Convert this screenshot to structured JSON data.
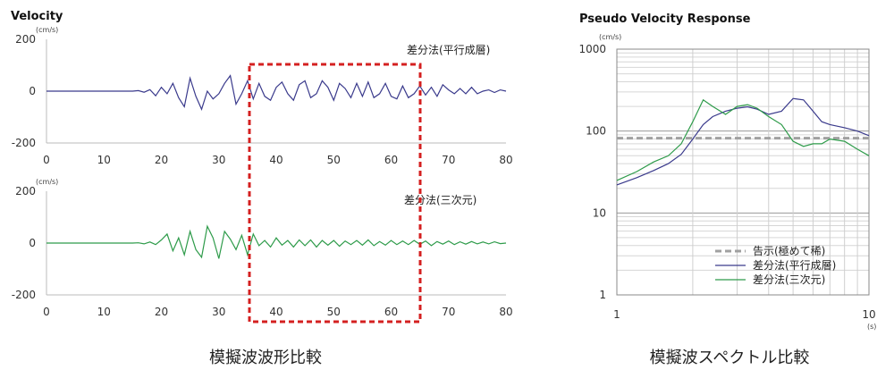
{
  "chart_data": [
    {
      "type": "line",
      "title": "Velocity",
      "unit": "(cm/s)",
      "xticks": [
        0,
        10,
        20,
        30,
        40,
        50,
        60,
        70,
        80
      ],
      "yticks": [
        200,
        0,
        -200
      ],
      "xlim": [
        0,
        80
      ],
      "ylim": [
        -200,
        200
      ],
      "series": [
        {
          "name": "差分法(平行成層)",
          "color": "#3a3a8c",
          "x": [
            0,
            15,
            16,
            17,
            18,
            19,
            20,
            21,
            22,
            23,
            24,
            25,
            26,
            27,
            28,
            29,
            30,
            31,
            32,
            33,
            34,
            35,
            36,
            37,
            38,
            39,
            40,
            41,
            42,
            43,
            44,
            45,
            46,
            47,
            48,
            49,
            50,
            51,
            52,
            53,
            54,
            55,
            56,
            57,
            58,
            59,
            60,
            61,
            62,
            63,
            64,
            65,
            66,
            67,
            68,
            69,
            70,
            71,
            72,
            73,
            74,
            75,
            76,
            77,
            78,
            79,
            80
          ],
          "y": [
            0,
            0,
            2,
            -4,
            6,
            -18,
            15,
            -10,
            30,
            -25,
            -60,
            50,
            -20,
            -70,
            0,
            -30,
            -10,
            30,
            60,
            -50,
            -10,
            40,
            -30,
            30,
            -20,
            -35,
            15,
            35,
            -10,
            -35,
            25,
            40,
            -25,
            -10,
            40,
            15,
            -35,
            30,
            10,
            -25,
            30,
            -20,
            35,
            -25,
            -10,
            30,
            -20,
            -30,
            20,
            -25,
            -10,
            20,
            -15,
            15,
            -20,
            25,
            5,
            -10,
            10,
            -10,
            15,
            -10,
            0,
            5,
            -5,
            5,
            0
          ]
        }
      ],
      "series_label": "差分法(平行成層)"
    },
    {
      "type": "line",
      "unit": "(cm/s)",
      "xticks": [
        0,
        10,
        20,
        30,
        40,
        50,
        60,
        70,
        80
      ],
      "yticks": [
        200,
        0,
        -200
      ],
      "xlim": [
        0,
        80
      ],
      "ylim": [
        -200,
        200
      ],
      "series": [
        {
          "name": "差分法(三次元)",
          "color": "#2e9b4a",
          "x": [
            0,
            15,
            16,
            17,
            18,
            19,
            20,
            21,
            22,
            23,
            24,
            25,
            26,
            27,
            28,
            29,
            30,
            31,
            32,
            33,
            34,
            35,
            36,
            37,
            38,
            39,
            40,
            41,
            42,
            43,
            44,
            45,
            46,
            47,
            48,
            49,
            50,
            51,
            52,
            53,
            54,
            55,
            56,
            57,
            58,
            59,
            60,
            61,
            62,
            63,
            64,
            65,
            66,
            67,
            68,
            69,
            70,
            71,
            72,
            73,
            74,
            75,
            76,
            77,
            78,
            79,
            80
          ],
          "y": [
            0,
            0,
            1,
            -3,
            4,
            -6,
            12,
            35,
            -30,
            20,
            -45,
            45,
            -25,
            -55,
            65,
            20,
            -60,
            45,
            15,
            -25,
            30,
            -45,
            35,
            -10,
            10,
            -15,
            20,
            -8,
            10,
            -15,
            12,
            -10,
            12,
            -15,
            10,
            -8,
            10,
            -12,
            8,
            -6,
            10,
            -8,
            12,
            -10,
            6,
            -8,
            10,
            -6,
            8,
            -6,
            10,
            -5,
            8,
            -10,
            6,
            -4,
            8,
            -6,
            5,
            -4,
            6,
            -3,
            4,
            -3,
            5,
            -2,
            0
          ]
        }
      ],
      "series_label": "差分法(三次元)"
    },
    {
      "type": "line",
      "title": "Pseudo Velocity Response",
      "unit": "(cm/s)",
      "xunit": "(s)",
      "xscale": "log",
      "yscale": "log",
      "xlim": [
        1,
        10
      ],
      "ylim": [
        1,
        1000
      ],
      "xticks": [
        1,
        10
      ],
      "yticks": [
        1000,
        100,
        10,
        1
      ],
      "grid": true,
      "legend_position": "bottom-right",
      "series": [
        {
          "name": "告示(極めて稀)",
          "color": "#a0a0a0",
          "dashed": true,
          "x": [
            1,
            10
          ],
          "y": [
            82,
            82
          ]
        },
        {
          "name": "差分法(平行成層)",
          "color": "#3a3a8c",
          "x": [
            1.0,
            1.2,
            1.4,
            1.6,
            1.8,
            2.0,
            2.2,
            2.4,
            2.7,
            3.0,
            3.3,
            3.6,
            4.0,
            4.5,
            5.0,
            5.5,
            6.0,
            6.5,
            7.0,
            8.0,
            9.0,
            10.0
          ],
          "y": [
            22,
            27,
            33,
            40,
            52,
            80,
            120,
            150,
            175,
            190,
            198,
            185,
            160,
            175,
            250,
            240,
            175,
            130,
            120,
            110,
            100,
            88
          ]
        },
        {
          "name": "差分法(三次元)",
          "color": "#2e9b4a",
          "x": [
            1.0,
            1.2,
            1.4,
            1.6,
            1.8,
            2.0,
            2.2,
            2.4,
            2.7,
            3.0,
            3.3,
            3.6,
            4.0,
            4.5,
            5.0,
            5.5,
            6.0,
            6.5,
            7.0,
            8.0,
            9.0,
            10.0
          ],
          "y": [
            25,
            32,
            42,
            50,
            70,
            130,
            240,
            200,
            160,
            200,
            210,
            190,
            150,
            120,
            75,
            65,
            70,
            70,
            80,
            75,
            60,
            50
          ]
        }
      ]
    }
  ],
  "captions": {
    "left": "模擬波波形比較",
    "right": "模擬波スペクトル比較"
  }
}
